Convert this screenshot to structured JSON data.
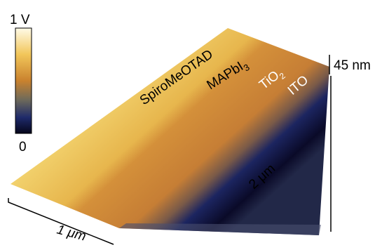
{
  "colorbar": {
    "max_label": "1 V",
    "min_label": "0"
  },
  "labels": {
    "spiro": "SpiroMeOTAD",
    "mapbi": {
      "text": "MAPbI",
      "subscript": "3"
    },
    "tio2": {
      "text": "TiO",
      "subscript": "2"
    },
    "ito": "ITO"
  },
  "scale": {
    "height": "45 nm",
    "length_long": "2 μm",
    "length_short": "1 μm"
  }
}
